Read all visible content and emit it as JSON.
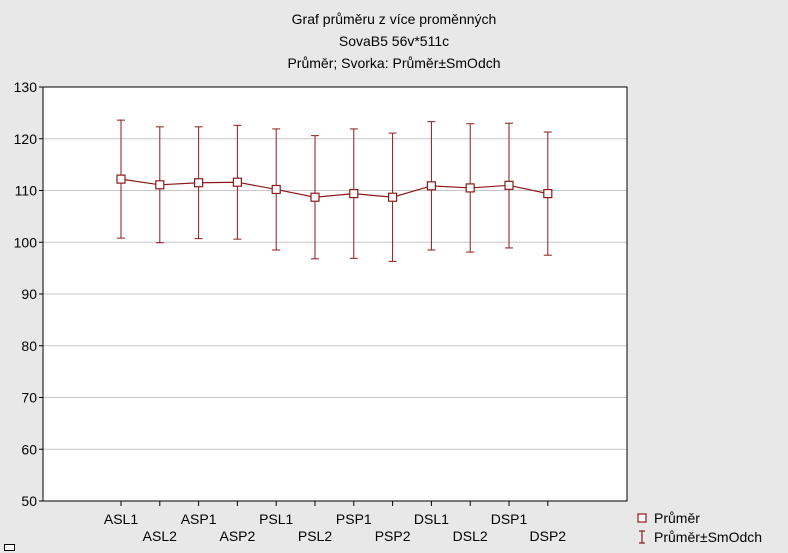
{
  "chart_data": {
    "type": "line",
    "title": "Graf průměru z více proměnných",
    "subtitle": "SovaB5 56v*511c",
    "subtitle2": "Průměr; Svorka: Průměr±SmOdch",
    "xlabel": "",
    "ylabel": "",
    "ylim": [
      50,
      130
    ],
    "yticks": [
      50,
      60,
      70,
      80,
      90,
      100,
      110,
      120,
      130
    ],
    "grid": true,
    "legend_position": "bottom-right",
    "categories": [
      "ASL1",
      "ASL2",
      "ASP1",
      "ASP2",
      "PSL1",
      "PSL2",
      "PSP1",
      "PSP2",
      "DSL1",
      "DSL2",
      "DSP1",
      "DSP2"
    ],
    "series": [
      {
        "name": "Průměr",
        "values": [
          112.2,
          111.1,
          111.5,
          111.6,
          110.2,
          108.7,
          109.4,
          108.7,
          110.9,
          110.5,
          111.0,
          109.4
        ],
        "upper": [
          123.6,
          122.3,
          122.3,
          122.6,
          121.9,
          120.6,
          121.9,
          121.1,
          123.3,
          122.9,
          123.0,
          121.3
        ],
        "lower": [
          100.8,
          99.9,
          100.7,
          100.6,
          98.5,
          96.8,
          96.9,
          96.3,
          98.5,
          98.1,
          98.9,
          97.5
        ]
      }
    ],
    "legend": [
      "Průměr",
      "Průměr±SmOdch"
    ],
    "colors": {
      "line": "#8b1a1a",
      "background": "#e8e8e8",
      "plot": "#ffffff",
      "grid": "#c8c8c8"
    }
  }
}
